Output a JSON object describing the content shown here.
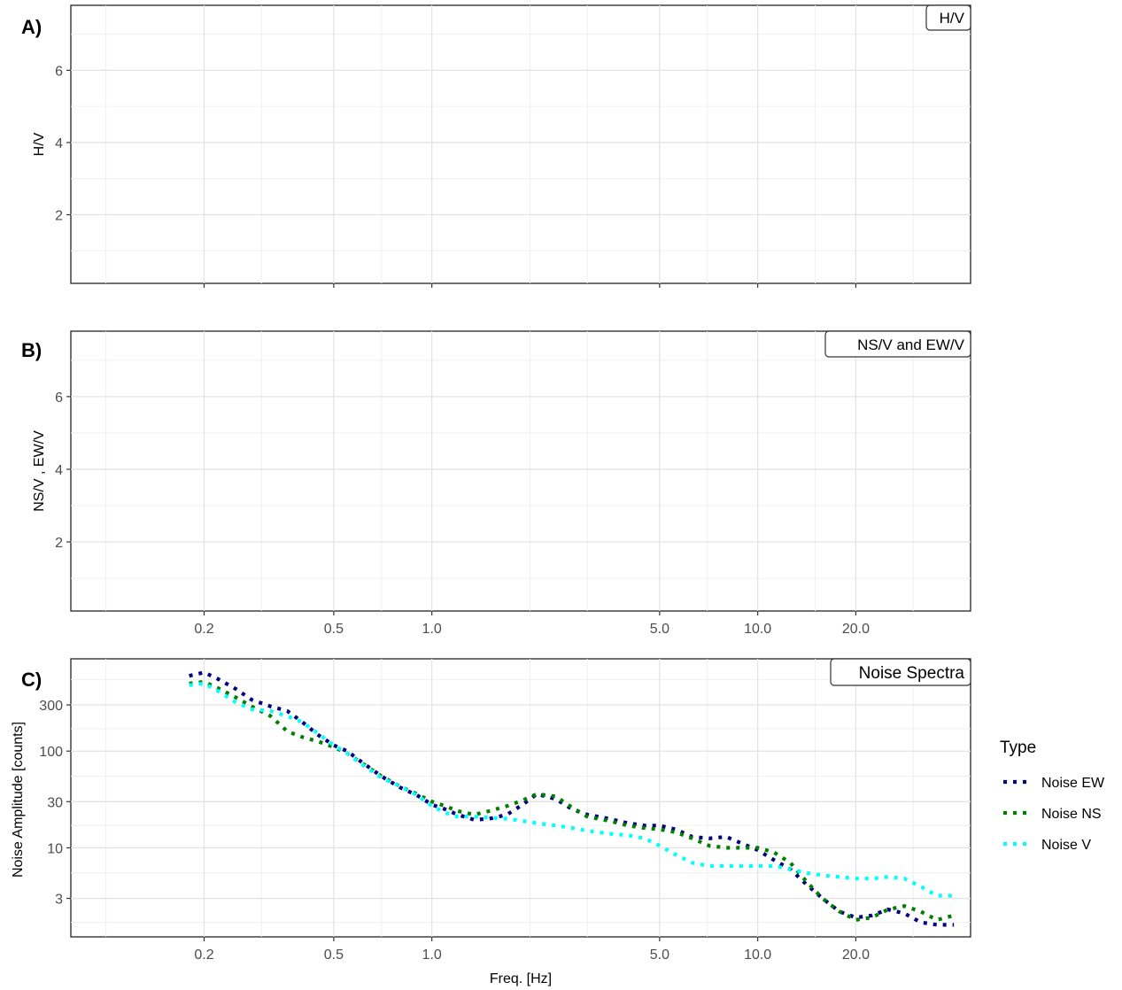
{
  "chart_data": [
    {
      "panel_tag": "A)",
      "strip_label": "H/V",
      "type": "line",
      "ylabel": "H/V",
      "y_scale": "linear",
      "ylim": [
        0.1,
        7.8
      ],
      "yticks": [
        2,
        4,
        6
      ],
      "ytick_labels": [
        "2",
        "4",
        "6"
      ],
      "x_scale": "log",
      "xlim": [
        0.078,
        45
      ],
      "xticks": [
        0.2,
        0.5,
        1.0,
        5.0,
        10.0,
        20.0
      ],
      "xtick_labels": [],
      "grid": true,
      "series": []
    },
    {
      "panel_tag": "B)",
      "strip_label": "NS/V and EW/V",
      "type": "line",
      "ylabel": "NS/V , EW/V",
      "y_scale": "linear",
      "ylim": [
        0.1,
        7.8
      ],
      "yticks": [
        2,
        4,
        6
      ],
      "ytick_labels": [
        "2",
        "4",
        "6"
      ],
      "x_scale": "log",
      "xlim": [
        0.078,
        45
      ],
      "xticks": [
        0.2,
        0.5,
        1.0,
        5.0,
        10.0,
        20.0
      ],
      "xtick_labels": [
        "0.2",
        "0.5",
        "1.0",
        "5.0",
        "10.0",
        "20.0"
      ],
      "grid": true,
      "series": []
    },
    {
      "panel_tag": "C)",
      "strip_label": "Noise Spectra",
      "type": "line",
      "xlabel": "Freq. [Hz]",
      "ylabel": "Noise Amplitude [counts]",
      "y_scale": "log",
      "ylim": [
        1.2,
        900
      ],
      "yticks": [
        3,
        10,
        30,
        100,
        300
      ],
      "ytick_labels": [
        "3",
        "10",
        "30",
        "100",
        "300"
      ],
      "x_scale": "log",
      "xlim": [
        0.078,
        45
      ],
      "xticks": [
        0.2,
        0.5,
        1.0,
        5.0,
        10.0,
        20.0
      ],
      "xtick_labels": [
        "0.2",
        "0.5",
        "1.0",
        "5.0",
        "10.0",
        "20.0"
      ],
      "grid": true,
      "legend": {
        "title": "Type",
        "position": "right",
        "entries": [
          "Noise EW",
          "Noise NS",
          "Noise V"
        ]
      },
      "series": [
        {
          "name": "Noise EW",
          "color": "#000080",
          "x": [
            0.18,
            0.2,
            0.22,
            0.25,
            0.28,
            0.32,
            0.36,
            0.4,
            0.45,
            0.5,
            0.55,
            0.6,
            0.7,
            0.8,
            0.9,
            1.0,
            1.1,
            1.2,
            1.35,
            1.5,
            1.7,
            1.9,
            2.1,
            2.4,
            2.7,
            3.0,
            3.5,
            4.0,
            4.5,
            5.0,
            5.6,
            6.3,
            7.1,
            8.0,
            9.0,
            10.0,
            11.2,
            12.6,
            14.1,
            15.8,
            17.8,
            20.0,
            22.4,
            25.1,
            28.2,
            31.6,
            35.5,
            40.0
          ],
          "y": [
            600,
            650,
            560,
            440,
            340,
            290,
            260,
            200,
            145,
            115,
            100,
            80,
            55,
            42,
            35,
            28,
            25,
            22,
            19.5,
            20,
            22,
            28,
            36,
            32,
            25,
            22,
            20,
            18,
            17,
            17,
            15.5,
            13,
            12.5,
            13,
            11,
            9.5,
            7.5,
            6,
            4.2,
            3,
            2.2,
            1.9,
            2.0,
            2.3,
            2.1,
            1.7,
            1.6,
            1.6
          ]
        },
        {
          "name": "Noise NS",
          "color": "#008000",
          "x": [
            0.18,
            0.2,
            0.22,
            0.25,
            0.28,
            0.32,
            0.36,
            0.4,
            0.45,
            0.5,
            0.55,
            0.6,
            0.7,
            0.8,
            0.9,
            1.0,
            1.1,
            1.2,
            1.35,
            1.5,
            1.7,
            1.9,
            2.1,
            2.4,
            2.7,
            3.0,
            3.5,
            4.0,
            4.5,
            5.0,
            5.6,
            6.3,
            7.1,
            8.0,
            9.0,
            10.0,
            11.2,
            12.6,
            14.1,
            15.8,
            17.8,
            20.0,
            22.4,
            25.1,
            28.2,
            31.6,
            35.5,
            40.0
          ],
          "y": [
            500,
            520,
            450,
            360,
            290,
            230,
            160,
            140,
            125,
            110,
            95,
            78,
            55,
            43,
            36,
            30,
            27,
            24,
            22,
            24,
            27,
            31,
            36,
            34,
            26,
            21,
            19,
            17,
            16,
            15.5,
            14.5,
            12.5,
            10.5,
            10,
            10,
            10,
            9,
            7,
            4.5,
            3,
            2.2,
            1.8,
            1.9,
            2.3,
            2.5,
            2.2,
            1.8,
            2.0
          ]
        },
        {
          "name": "Noise V",
          "color": "#00FFFF",
          "x": [
            0.18,
            0.2,
            0.22,
            0.25,
            0.28,
            0.32,
            0.36,
            0.4,
            0.45,
            0.5,
            0.55,
            0.6,
            0.7,
            0.8,
            0.9,
            1.0,
            1.1,
            1.2,
            1.35,
            1.5,
            1.7,
            1.9,
            2.1,
            2.4,
            2.7,
            3.0,
            3.5,
            4.0,
            4.5,
            5.0,
            5.6,
            6.3,
            7.1,
            8.0,
            9.0,
            10.0,
            11.2,
            12.6,
            14.1,
            15.8,
            17.8,
            20.0,
            22.4,
            25.1,
            28.2,
            31.6,
            35.5,
            40.0
          ],
          "y": [
            480,
            500,
            420,
            320,
            270,
            260,
            230,
            200,
            150,
            115,
            95,
            76,
            53,
            43,
            35,
            27,
            23,
            21,
            21,
            20.5,
            20,
            19,
            18,
            17,
            16,
            15,
            14,
            13.5,
            12.5,
            10.5,
            8.5,
            7,
            6.5,
            6.5,
            6.5,
            6.5,
            6.5,
            6,
            5.5,
            5.2,
            5,
            4.8,
            4.8,
            5,
            4.8,
            4,
            3.2,
            3.2
          ]
        }
      ]
    }
  ]
}
